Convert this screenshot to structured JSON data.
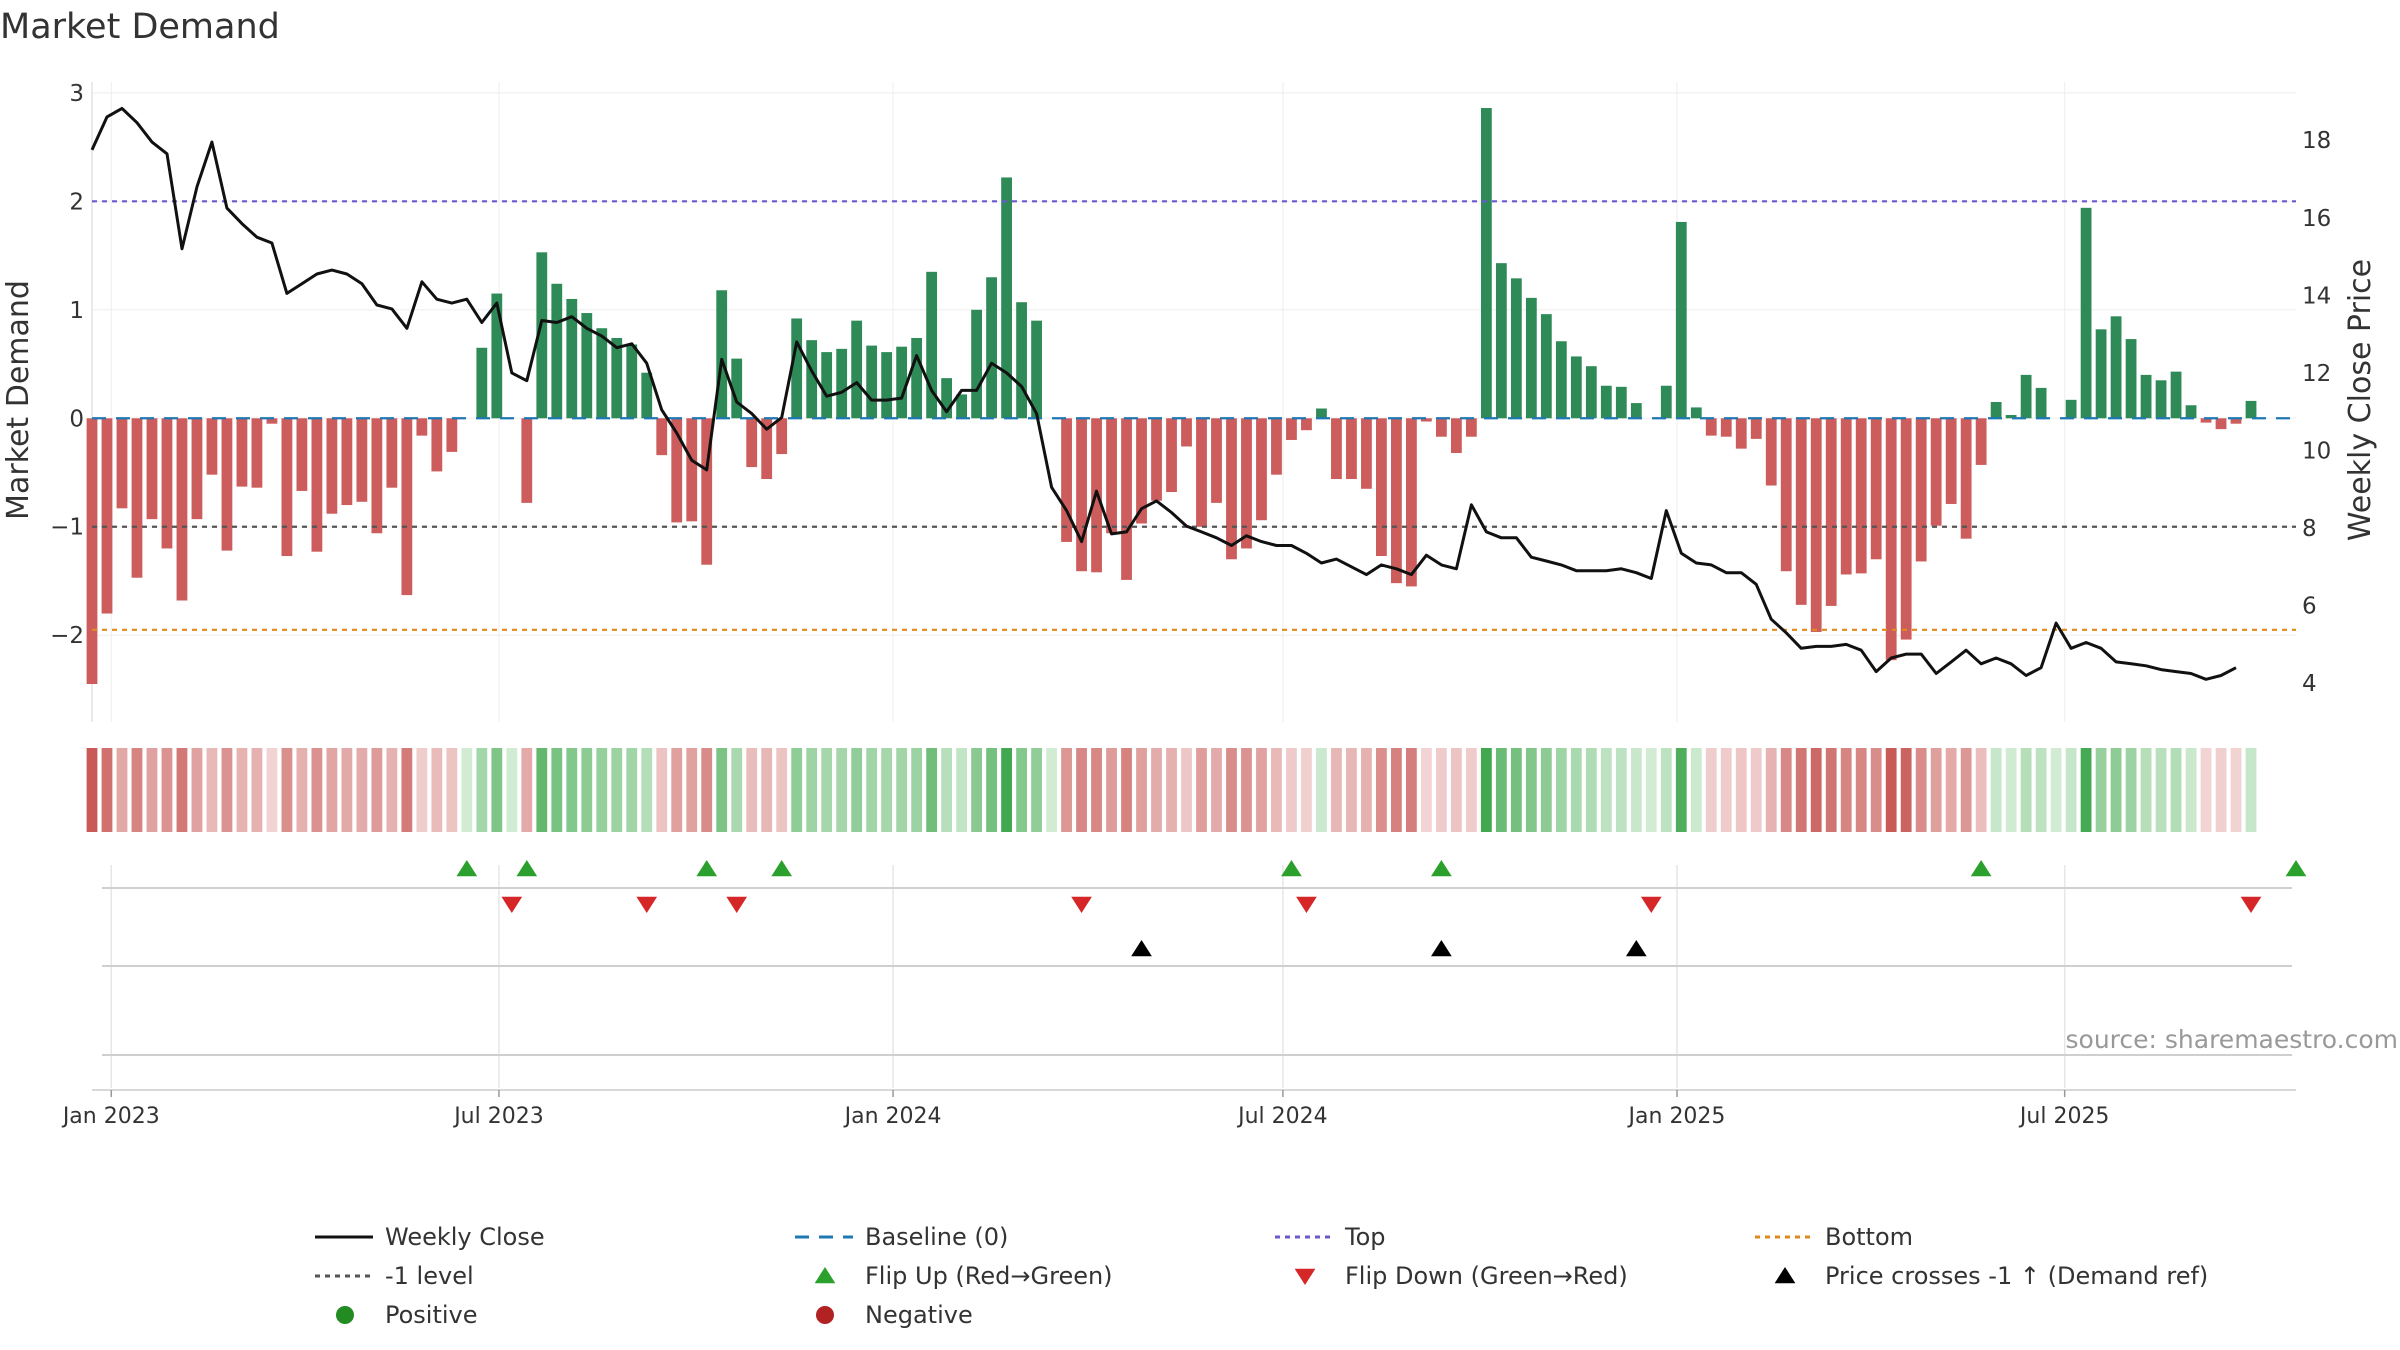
{
  "chart_data": {
    "type": "bar",
    "title": "Market Demand",
    "ylabel": "Market Demand",
    "y2label": "Weekly Close Price",
    "source_text": "source: sharemaestro.com",
    "ylim": [
      -2.8,
      3.1
    ],
    "y2lim": [
      3.0,
      19.5
    ],
    "yticks": [
      3,
      2,
      1,
      0,
      -1,
      -2
    ],
    "ytick_labels": [
      "3",
      "2",
      "1",
      "0",
      "−1",
      "−2"
    ],
    "y2ticks": [
      18,
      16,
      14,
      12,
      10,
      8,
      6,
      4
    ],
    "y2tick_labels": [
      "18",
      "16",
      "14",
      "12",
      "10",
      "8",
      "6",
      "4"
    ],
    "x_start": "2022-12-23",
    "x_end": "2025-10-17",
    "xticks": [
      {
        "date": "2023-01-01",
        "label": "Jan 2023"
      },
      {
        "date": "2023-07-01",
        "label": "Jul 2023"
      },
      {
        "date": "2024-01-01",
        "label": "Jan 2024"
      },
      {
        "date": "2024-07-01",
        "label": "Jul 2024"
      },
      {
        "date": "2025-01-01",
        "label": "Jan 2025"
      },
      {
        "date": "2025-07-01",
        "label": "Jul 2025"
      }
    ],
    "first_week": "2022-12-23",
    "week_interval_days": 7,
    "series": [
      {
        "name": "Market Demand",
        "kind": "bar",
        "values": [
          -2.45,
          -1.8,
          -0.83,
          -1.47,
          -0.93,
          -1.2,
          -1.68,
          -0.93,
          -0.52,
          -1.22,
          -0.63,
          -0.64,
          -0.05,
          -1.27,
          -0.67,
          -1.23,
          -0.88,
          -0.8,
          -0.77,
          -1.06,
          -0.64,
          -1.63,
          -0.16,
          -0.49,
          -0.31,
          0.0,
          0.65,
          1.15,
          0.0,
          -0.78,
          1.53,
          1.24,
          1.1,
          0.97,
          0.83,
          0.74,
          0.68,
          0.42,
          -0.34,
          -0.96,
          -0.95,
          -1.35,
          1.18,
          0.55,
          -0.45,
          -0.56,
          -0.33,
          0.92,
          0.72,
          0.61,
          0.64,
          0.9,
          0.67,
          0.61,
          0.66,
          0.74,
          1.35,
          0.37,
          0.22,
          1.0,
          1.3,
          2.22,
          1.07,
          0.9,
          0.0,
          -1.14,
          -1.41,
          -1.42,
          -1.06,
          -1.49,
          -0.97,
          -0.76,
          -0.68,
          -0.26,
          -1.0,
          -0.78,
          -1.3,
          -1.2,
          -0.94,
          -0.52,
          -0.2,
          -0.11,
          0.09,
          -0.56,
          -0.56,
          -0.65,
          -1.27,
          -1.52,
          -1.55,
          -0.03,
          -0.17,
          -0.32,
          -0.17,
          2.86,
          1.43,
          1.29,
          1.11,
          0.96,
          0.71,
          0.57,
          0.48,
          0.3,
          0.29,
          0.14,
          0.0,
          0.3,
          1.81,
          0.1,
          -0.16,
          -0.17,
          -0.28,
          -0.19,
          -0.62,
          -1.41,
          -1.72,
          -1.97,
          -1.73,
          -1.44,
          -1.43,
          -1.3,
          -2.23,
          -2.04,
          -1.32,
          -0.99,
          -0.79,
          -1.11,
          -0.43,
          0.15,
          0.03,
          0.4,
          0.28,
          0.0,
          0.17,
          1.94,
          0.82,
          0.94,
          0.73,
          0.4,
          0.35,
          0.43,
          0.12,
          -0.04,
          -0.1,
          -0.05,
          0.16
        ]
      },
      {
        "name": "Weekly Close",
        "kind": "line",
        "axis": "right",
        "values": [
          17.75,
          18.6,
          18.82,
          18.45,
          17.95,
          17.65,
          15.2,
          16.8,
          17.95,
          16.25,
          15.85,
          15.5,
          15.35,
          14.05,
          14.3,
          14.55,
          14.65,
          14.55,
          14.3,
          13.75,
          13.65,
          13.15,
          14.35,
          13.9,
          13.8,
          13.9,
          13.3,
          13.8,
          12.0,
          11.8,
          13.35,
          13.3,
          13.45,
          13.15,
          12.95,
          12.65,
          12.75,
          12.25,
          11.05,
          10.45,
          9.75,
          9.5,
          12.35,
          11.25,
          10.95,
          10.55,
          10.85,
          12.8,
          12.05,
          11.4,
          11.5,
          11.75,
          11.3,
          11.3,
          11.35,
          12.45,
          11.55,
          11.0,
          11.55,
          11.55,
          12.25,
          12.0,
          11.65,
          10.95,
          9.05,
          8.45,
          7.65,
          8.95,
          7.85,
          7.9,
          8.5,
          8.7,
          8.4,
          8.05,
          7.9,
          7.75,
          7.55,
          7.8,
          7.65,
          7.55,
          7.55,
          7.35,
          7.1,
          7.2,
          7.0,
          6.8,
          7.05,
          6.95,
          6.8,
          7.3,
          7.05,
          6.95,
          8.6,
          7.9,
          7.75,
          7.75,
          7.25,
          7.15,
          7.05,
          6.9,
          6.9,
          6.9,
          6.95,
          6.85,
          6.7,
          8.45,
          7.35,
          7.1,
          7.05,
          6.85,
          6.85,
          6.55,
          5.65,
          5.3,
          4.9,
          4.95,
          4.95,
          5.0,
          4.85,
          4.3,
          4.65,
          4.75,
          4.75,
          4.25,
          4.55,
          4.85,
          4.5,
          4.65,
          4.5,
          4.2,
          4.4,
          5.55,
          4.9,
          5.05,
          4.9,
          4.55,
          4.5,
          4.45,
          4.35,
          4.3,
          4.25,
          4.1,
          4.2,
          4.4
        ]
      },
      {
        "name": "Top",
        "kind": "hline",
        "value": 2.0
      },
      {
        "name": "Bottom",
        "kind": "hline",
        "value": -1.95
      },
      {
        "name": "-1 level",
        "kind": "hline",
        "value": -1.0
      },
      {
        "name": "Baseline (0)",
        "kind": "hline",
        "value": 0.0
      }
    ],
    "flip_up": [
      "2023-06-16",
      "2023-07-14",
      "2023-10-06",
      "2023-11-10",
      "2024-07-05",
      "2024-09-13",
      "2025-05-23",
      "2025-10-17"
    ],
    "flip_down": [
      "2023-07-07",
      "2023-09-08",
      "2023-10-20",
      "2024-03-29",
      "2024-07-12",
      "2024-12-20",
      "2025-09-26"
    ],
    "price_cross_up": [
      "2024-04-26",
      "2024-09-13",
      "2024-12-13"
    ],
    "colors": {
      "positive": "#2e8b57",
      "negative": "#cd5c5c",
      "price_line": "#111111",
      "baseline": "#1f77b4",
      "top": "#6a5acd",
      "bottom": "#e08a1e",
      "minus_one": "#555555",
      "flip_up": "#2ca02c",
      "flip_down": "#d62728",
      "cross": "#000000",
      "strip_pos_strong": "#41a84f",
      "strip_pos_light": "#d2ecd4",
      "strip_neg_strong": "#c85b58",
      "strip_neg_light": "#f2d6d5"
    },
    "legend": {
      "placement": "bottom",
      "items": [
        {
          "label": "Weekly Close",
          "marker": "solid-line",
          "color": "#111111"
        },
        {
          "label": "Baseline (0)",
          "marker": "dashed-line",
          "color": "#1f77b4"
        },
        {
          "label": "Top",
          "marker": "dotted-line",
          "color": "#6a5acd"
        },
        {
          "label": "Bottom",
          "marker": "dotted-line",
          "color": "#e08a1e"
        },
        {
          "label": "-1 level",
          "marker": "dotted-line",
          "color": "#555555"
        },
        {
          "label": "Flip Up (Red→Green)",
          "marker": "triangle-up",
          "color": "#2ca02c"
        },
        {
          "label": "Flip Down (Green→Red)",
          "marker": "triangle-down",
          "color": "#d62728"
        },
        {
          "label": "Price crosses -1 ↑ (Demand ref)",
          "marker": "triangle-up",
          "color": "#000000"
        },
        {
          "label": "Positive",
          "marker": "circle",
          "color": "#228b22"
        },
        {
          "label": "Negative",
          "marker": "circle",
          "color": "#b22222"
        }
      ]
    }
  }
}
